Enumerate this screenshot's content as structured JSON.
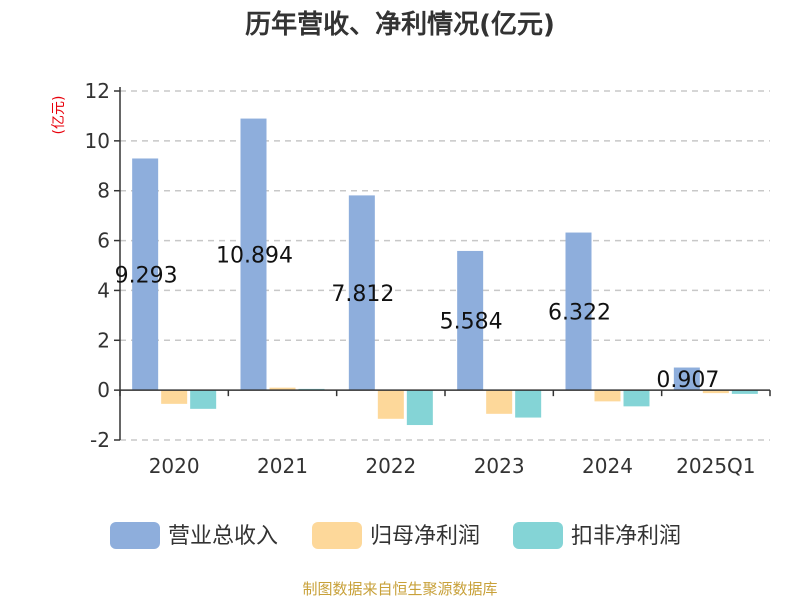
{
  "chart_data": {
    "type": "bar",
    "title": "历年营收、净利情况(亿元)",
    "unit_label": "(亿元)",
    "categories": [
      "2020",
      "2021",
      "2022",
      "2023",
      "2024",
      "2025Q1"
    ],
    "ylim": [
      -2,
      12
    ],
    "yticks": [
      "12",
      "10",
      "8",
      "6",
      "4",
      "2",
      "0",
      "-2"
    ],
    "ytick_values": [
      12,
      10,
      8,
      6,
      4,
      2,
      0,
      -2
    ],
    "grid": true,
    "legend_position": "bottom",
    "series": [
      {
        "name": "营业总收入",
        "color": "#8eaedc",
        "values": [
          9.293,
          10.894,
          7.812,
          5.584,
          6.322,
          0.907
        ],
        "labels": [
          "9.293",
          "10.894",
          "7.812",
          "5.584",
          "6.322",
          "0.907"
        ]
      },
      {
        "name": "归母净利润",
        "color": "#fdd89a",
        "values": [
          -0.55,
          0.1,
          -1.15,
          -0.95,
          -0.45,
          -0.12
        ]
      },
      {
        "name": "扣非净利润",
        "color": "#84d4d6",
        "values": [
          -0.75,
          0.05,
          -1.4,
          -1.1,
          -0.65,
          -0.15
        ]
      }
    ],
    "source": "制图数据来自恒生聚源数据库"
  }
}
